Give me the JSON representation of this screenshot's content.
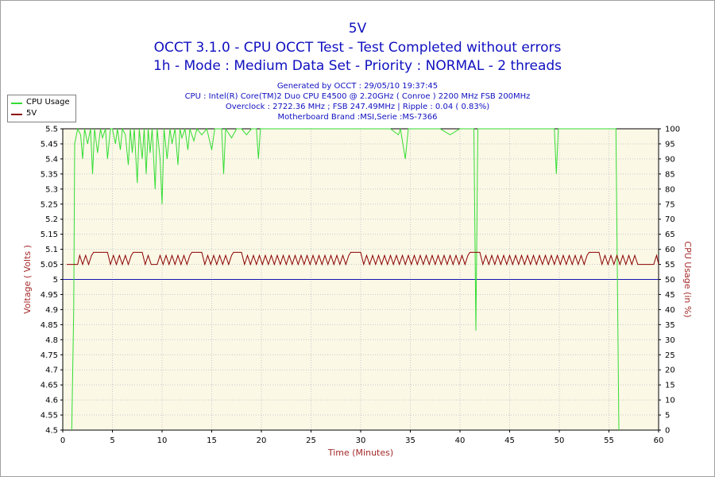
{
  "header": {
    "title": "5V",
    "line2": "OCCT 3.1.0 - CPU OCCT Test - Test Completed without errors",
    "line3": "1h - Mode : Medium Data Set - Priority : NORMAL - 2 threads"
  },
  "info": {
    "generated": "Generated by OCCT : 29/05/10 19:37:45",
    "cpu": "CPU : Intel(R) Core(TM)2 Duo CPU E4500 @ 2.20GHz ( Conroe ) 2200 MHz FSB 200MHz",
    "overclock": "Overclock : 2722.36 MHz ; FSB 247.49MHz | Ripple : 0.04 ( 0.83%)",
    "motherboard": "Motherboard Brand :MSI,Serie :MS-7366"
  },
  "legend": {
    "items": [
      {
        "label": "CPU Usage",
        "color": "#33dd33"
      },
      {
        "label": "5V",
        "color": "#8b0000"
      }
    ]
  },
  "colors": {
    "plot_bg": "#fbf8e6",
    "grid": "#c8c8c8",
    "cpu_line": "#33dd33",
    "volt_line": "#8b0000",
    "ref_line": "#1515b0",
    "axis_label": "#a52a2a",
    "axis_text": "#000000"
  },
  "chart_data": {
    "type": "line",
    "xlabel": "Time (Minutes)",
    "ylabel_left": "Voltage ( Volts )",
    "ylabel_right": "CPU Usage (in %)",
    "xlim": [
      0,
      60
    ],
    "ylim_left": [
      4.5,
      5.5
    ],
    "ylim_right": [
      0,
      100
    ],
    "x_ticks": [
      0,
      5,
      10,
      15,
      20,
      25,
      30,
      35,
      40,
      45,
      50,
      55,
      60
    ],
    "y_left_ticks": [
      "4.5",
      "4.55",
      "4.6",
      "4.65",
      "4.7",
      "4.75",
      "4.8",
      "4.85",
      "4.9",
      "4.95",
      "5",
      "5.05",
      "5.1",
      "5.15",
      "5.2",
      "5.25",
      "5.3",
      "5.35",
      "5.4",
      "5.45",
      "5.5"
    ],
    "y_right_ticks": [
      "0",
      "5",
      "10",
      "15",
      "20",
      "25",
      "30",
      "35",
      "40",
      "45",
      "50",
      "55",
      "60",
      "65",
      "70",
      "75",
      "80",
      "85",
      "90",
      "95",
      "100"
    ],
    "grid": true,
    "reference_line": {
      "axis": "left",
      "value": 5.0
    },
    "series": [
      {
        "name": "CPU Usage",
        "axis": "right",
        "points": [
          [
            0.9,
            0
          ],
          [
            1.1,
            40
          ],
          [
            1.2,
            95
          ],
          [
            1.5,
            100
          ],
          [
            1.8,
            98
          ],
          [
            2.0,
            90
          ],
          [
            2.2,
            100
          ],
          [
            2.5,
            95
          ],
          [
            2.8,
            100
          ],
          [
            3.0,
            85
          ],
          [
            3.2,
            100
          ],
          [
            3.5,
            92
          ],
          [
            3.8,
            100
          ],
          [
            4.0,
            97
          ],
          [
            4.3,
            100
          ],
          [
            4.5,
            90
          ],
          [
            4.8,
            100
          ],
          [
            5.0,
            100
          ],
          [
            5.3,
            95
          ],
          [
            5.5,
            100
          ],
          [
            5.8,
            93
          ],
          [
            6.0,
            100
          ],
          [
            6.3,
            98
          ],
          [
            6.6,
            88
          ],
          [
            6.8,
            100
          ],
          [
            7.0,
            92
          ],
          [
            7.2,
            100
          ],
          [
            7.5,
            82
          ],
          [
            7.7,
            100
          ],
          [
            8.0,
            90
          ],
          [
            8.2,
            100
          ],
          [
            8.4,
            85
          ],
          [
            8.6,
            100
          ],
          [
            8.8,
            92
          ],
          [
            9.0,
            100
          ],
          [
            9.3,
            80
          ],
          [
            9.5,
            100
          ],
          [
            9.8,
            90
          ],
          [
            10.0,
            75
          ],
          [
            10.2,
            100
          ],
          [
            10.5,
            90
          ],
          [
            10.8,
            100
          ],
          [
            11.0,
            95
          ],
          [
            11.3,
            100
          ],
          [
            11.6,
            88
          ],
          [
            11.8,
            100
          ],
          [
            12.0,
            97
          ],
          [
            12.3,
            100
          ],
          [
            12.6,
            93
          ],
          [
            12.8,
            100
          ],
          [
            13.2,
            96
          ],
          [
            13.5,
            100
          ],
          [
            14.0,
            98
          ],
          [
            14.5,
            100
          ],
          [
            15.0,
            93
          ],
          [
            15.3,
            100
          ],
          [
            16.0,
            100
          ],
          [
            16.2,
            85
          ],
          [
            16.4,
            100
          ],
          [
            17.0,
            97
          ],
          [
            17.5,
            100
          ],
          [
            18.0,
            100
          ],
          [
            18.5,
            98
          ],
          [
            19.0,
            100
          ],
          [
            19.5,
            100
          ],
          [
            19.7,
            90
          ],
          [
            19.9,
            100
          ],
          [
            21.0,
            100
          ],
          [
            22.0,
            100
          ],
          [
            23.0,
            100
          ],
          [
            24.0,
            100
          ],
          [
            25.0,
            100
          ],
          [
            26.0,
            100
          ],
          [
            27.0,
            100
          ],
          [
            28.0,
            100
          ],
          [
            29.0,
            100
          ],
          [
            30.0,
            100
          ],
          [
            31.0,
            100
          ],
          [
            32.0,
            100
          ],
          [
            33.0,
            100
          ],
          [
            33.8,
            98
          ],
          [
            34.0,
            100
          ],
          [
            34.5,
            90
          ],
          [
            34.8,
            100
          ],
          [
            35.0,
            100
          ],
          [
            36.0,
            100
          ],
          [
            37.0,
            100
          ],
          [
            38.0,
            100
          ],
          [
            39.0,
            98
          ],
          [
            40.0,
            100
          ],
          [
            41.0,
            100
          ],
          [
            41.4,
            100
          ],
          [
            41.6,
            33
          ],
          [
            41.8,
            100
          ],
          [
            42.0,
            100
          ],
          [
            43.0,
            100
          ],
          [
            44.0,
            100
          ],
          [
            45.0,
            100
          ],
          [
            46.0,
            100
          ],
          [
            47.0,
            100
          ],
          [
            48.0,
            100
          ],
          [
            49.0,
            100
          ],
          [
            49.5,
            100
          ],
          [
            49.7,
            85
          ],
          [
            49.9,
            100
          ],
          [
            51.0,
            100
          ],
          [
            52.0,
            100
          ],
          [
            53.0,
            100
          ],
          [
            54.0,
            100
          ],
          [
            55.0,
            100
          ],
          [
            55.7,
            100
          ],
          [
            56.0,
            0
          ]
        ]
      },
      {
        "name": "5V",
        "axis": "left",
        "points": [
          [
            0.4,
            5.05
          ],
          [
            1.5,
            5.05
          ],
          [
            1.7,
            5.08
          ],
          [
            2.0,
            5.05
          ],
          [
            2.3,
            5.08
          ],
          [
            2.6,
            5.05
          ],
          [
            2.9,
            5.08
          ],
          [
            3.1,
            5.09
          ],
          [
            4.5,
            5.09
          ],
          [
            4.8,
            5.05
          ],
          [
            5.1,
            5.08
          ],
          [
            5.4,
            5.05
          ],
          [
            5.7,
            5.08
          ],
          [
            6.0,
            5.05
          ],
          [
            6.3,
            5.08
          ],
          [
            6.6,
            5.05
          ],
          [
            6.9,
            5.08
          ],
          [
            7.1,
            5.09
          ],
          [
            8.0,
            5.09
          ],
          [
            8.3,
            5.05
          ],
          [
            8.6,
            5.08
          ],
          [
            8.9,
            5.05
          ],
          [
            9.2,
            5.05
          ],
          [
            9.5,
            5.05
          ],
          [
            9.8,
            5.08
          ],
          [
            10.1,
            5.05
          ],
          [
            10.4,
            5.08
          ],
          [
            10.7,
            5.05
          ],
          [
            11.0,
            5.08
          ],
          [
            11.3,
            5.05
          ],
          [
            11.6,
            5.08
          ],
          [
            11.9,
            5.05
          ],
          [
            12.2,
            5.08
          ],
          [
            12.5,
            5.05
          ],
          [
            12.8,
            5.08
          ],
          [
            13.0,
            5.09
          ],
          [
            14.0,
            5.09
          ],
          [
            14.3,
            5.05
          ],
          [
            14.6,
            5.08
          ],
          [
            14.9,
            5.05
          ],
          [
            15.2,
            5.08
          ],
          [
            15.5,
            5.05
          ],
          [
            15.8,
            5.08
          ],
          [
            16.1,
            5.05
          ],
          [
            16.4,
            5.08
          ],
          [
            16.7,
            5.05
          ],
          [
            17.0,
            5.08
          ],
          [
            17.2,
            5.09
          ],
          [
            18.0,
            5.09
          ],
          [
            18.3,
            5.05
          ],
          [
            18.6,
            5.08
          ],
          [
            18.9,
            5.05
          ],
          [
            19.2,
            5.08
          ],
          [
            19.5,
            5.05
          ],
          [
            19.8,
            5.08
          ],
          [
            20.1,
            5.05
          ],
          [
            20.4,
            5.08
          ],
          [
            20.7,
            5.05
          ],
          [
            21.0,
            5.08
          ],
          [
            21.3,
            5.05
          ],
          [
            21.6,
            5.08
          ],
          [
            21.9,
            5.05
          ],
          [
            22.2,
            5.08
          ],
          [
            22.5,
            5.05
          ],
          [
            22.8,
            5.08
          ],
          [
            23.1,
            5.05
          ],
          [
            23.4,
            5.08
          ],
          [
            23.7,
            5.05
          ],
          [
            24.0,
            5.08
          ],
          [
            24.3,
            5.05
          ],
          [
            24.6,
            5.08
          ],
          [
            24.9,
            5.05
          ],
          [
            25.2,
            5.08
          ],
          [
            25.5,
            5.05
          ],
          [
            25.8,
            5.08
          ],
          [
            26.1,
            5.05
          ],
          [
            26.4,
            5.08
          ],
          [
            26.7,
            5.05
          ],
          [
            27.0,
            5.08
          ],
          [
            27.3,
            5.05
          ],
          [
            27.6,
            5.08
          ],
          [
            27.9,
            5.05
          ],
          [
            28.2,
            5.08
          ],
          [
            28.5,
            5.05
          ],
          [
            28.8,
            5.08
          ],
          [
            29.0,
            5.09
          ],
          [
            30.0,
            5.09
          ],
          [
            30.3,
            5.05
          ],
          [
            30.6,
            5.08
          ],
          [
            30.9,
            5.05
          ],
          [
            31.2,
            5.08
          ],
          [
            31.5,
            5.05
          ],
          [
            31.8,
            5.08
          ],
          [
            32.1,
            5.05
          ],
          [
            32.4,
            5.08
          ],
          [
            32.7,
            5.05
          ],
          [
            33.0,
            5.08
          ],
          [
            33.3,
            5.05
          ],
          [
            33.6,
            5.08
          ],
          [
            33.9,
            5.05
          ],
          [
            34.2,
            5.08
          ],
          [
            34.5,
            5.05
          ],
          [
            34.8,
            5.08
          ],
          [
            35.1,
            5.05
          ],
          [
            35.4,
            5.08
          ],
          [
            35.7,
            5.05
          ],
          [
            36.0,
            5.08
          ],
          [
            36.3,
            5.05
          ],
          [
            36.6,
            5.08
          ],
          [
            36.9,
            5.05
          ],
          [
            37.2,
            5.08
          ],
          [
            37.5,
            5.05
          ],
          [
            37.8,
            5.08
          ],
          [
            38.1,
            5.05
          ],
          [
            38.4,
            5.08
          ],
          [
            38.7,
            5.05
          ],
          [
            39.0,
            5.08
          ],
          [
            39.3,
            5.05
          ],
          [
            39.6,
            5.08
          ],
          [
            39.9,
            5.05
          ],
          [
            40.2,
            5.08
          ],
          [
            40.5,
            5.05
          ],
          [
            40.8,
            5.08
          ],
          [
            41.0,
            5.09
          ],
          [
            42.0,
            5.09
          ],
          [
            42.3,
            5.05
          ],
          [
            42.6,
            5.08
          ],
          [
            42.9,
            5.05
          ],
          [
            43.2,
            5.08
          ],
          [
            43.5,
            5.05
          ],
          [
            43.8,
            5.08
          ],
          [
            44.1,
            5.05
          ],
          [
            44.4,
            5.08
          ],
          [
            44.7,
            5.05
          ],
          [
            45.0,
            5.08
          ],
          [
            45.3,
            5.05
          ],
          [
            45.6,
            5.08
          ],
          [
            45.9,
            5.05
          ],
          [
            46.2,
            5.08
          ],
          [
            46.5,
            5.05
          ],
          [
            46.8,
            5.08
          ],
          [
            47.1,
            5.05
          ],
          [
            47.4,
            5.08
          ],
          [
            47.7,
            5.05
          ],
          [
            48.0,
            5.08
          ],
          [
            48.3,
            5.05
          ],
          [
            48.6,
            5.08
          ],
          [
            48.9,
            5.05
          ],
          [
            49.2,
            5.08
          ],
          [
            49.5,
            5.05
          ],
          [
            49.8,
            5.08
          ],
          [
            50.1,
            5.05
          ],
          [
            50.4,
            5.08
          ],
          [
            50.7,
            5.05
          ],
          [
            51.0,
            5.08
          ],
          [
            51.3,
            5.05
          ],
          [
            51.6,
            5.08
          ],
          [
            51.9,
            5.05
          ],
          [
            52.2,
            5.08
          ],
          [
            52.5,
            5.05
          ],
          [
            52.8,
            5.08
          ],
          [
            53.0,
            5.09
          ],
          [
            54.0,
            5.09
          ],
          [
            54.3,
            5.05
          ],
          [
            54.6,
            5.08
          ],
          [
            54.9,
            5.05
          ],
          [
            55.2,
            5.08
          ],
          [
            55.5,
            5.05
          ],
          [
            55.8,
            5.08
          ],
          [
            56.1,
            5.05
          ],
          [
            56.4,
            5.08
          ],
          [
            56.7,
            5.05
          ],
          [
            57.0,
            5.08
          ],
          [
            57.3,
            5.05
          ],
          [
            57.6,
            5.08
          ],
          [
            57.9,
            5.05
          ],
          [
            58.2,
            5.05
          ],
          [
            59.5,
            5.05
          ],
          [
            59.8,
            5.08
          ],
          [
            60.0,
            5.05
          ]
        ]
      }
    ]
  }
}
